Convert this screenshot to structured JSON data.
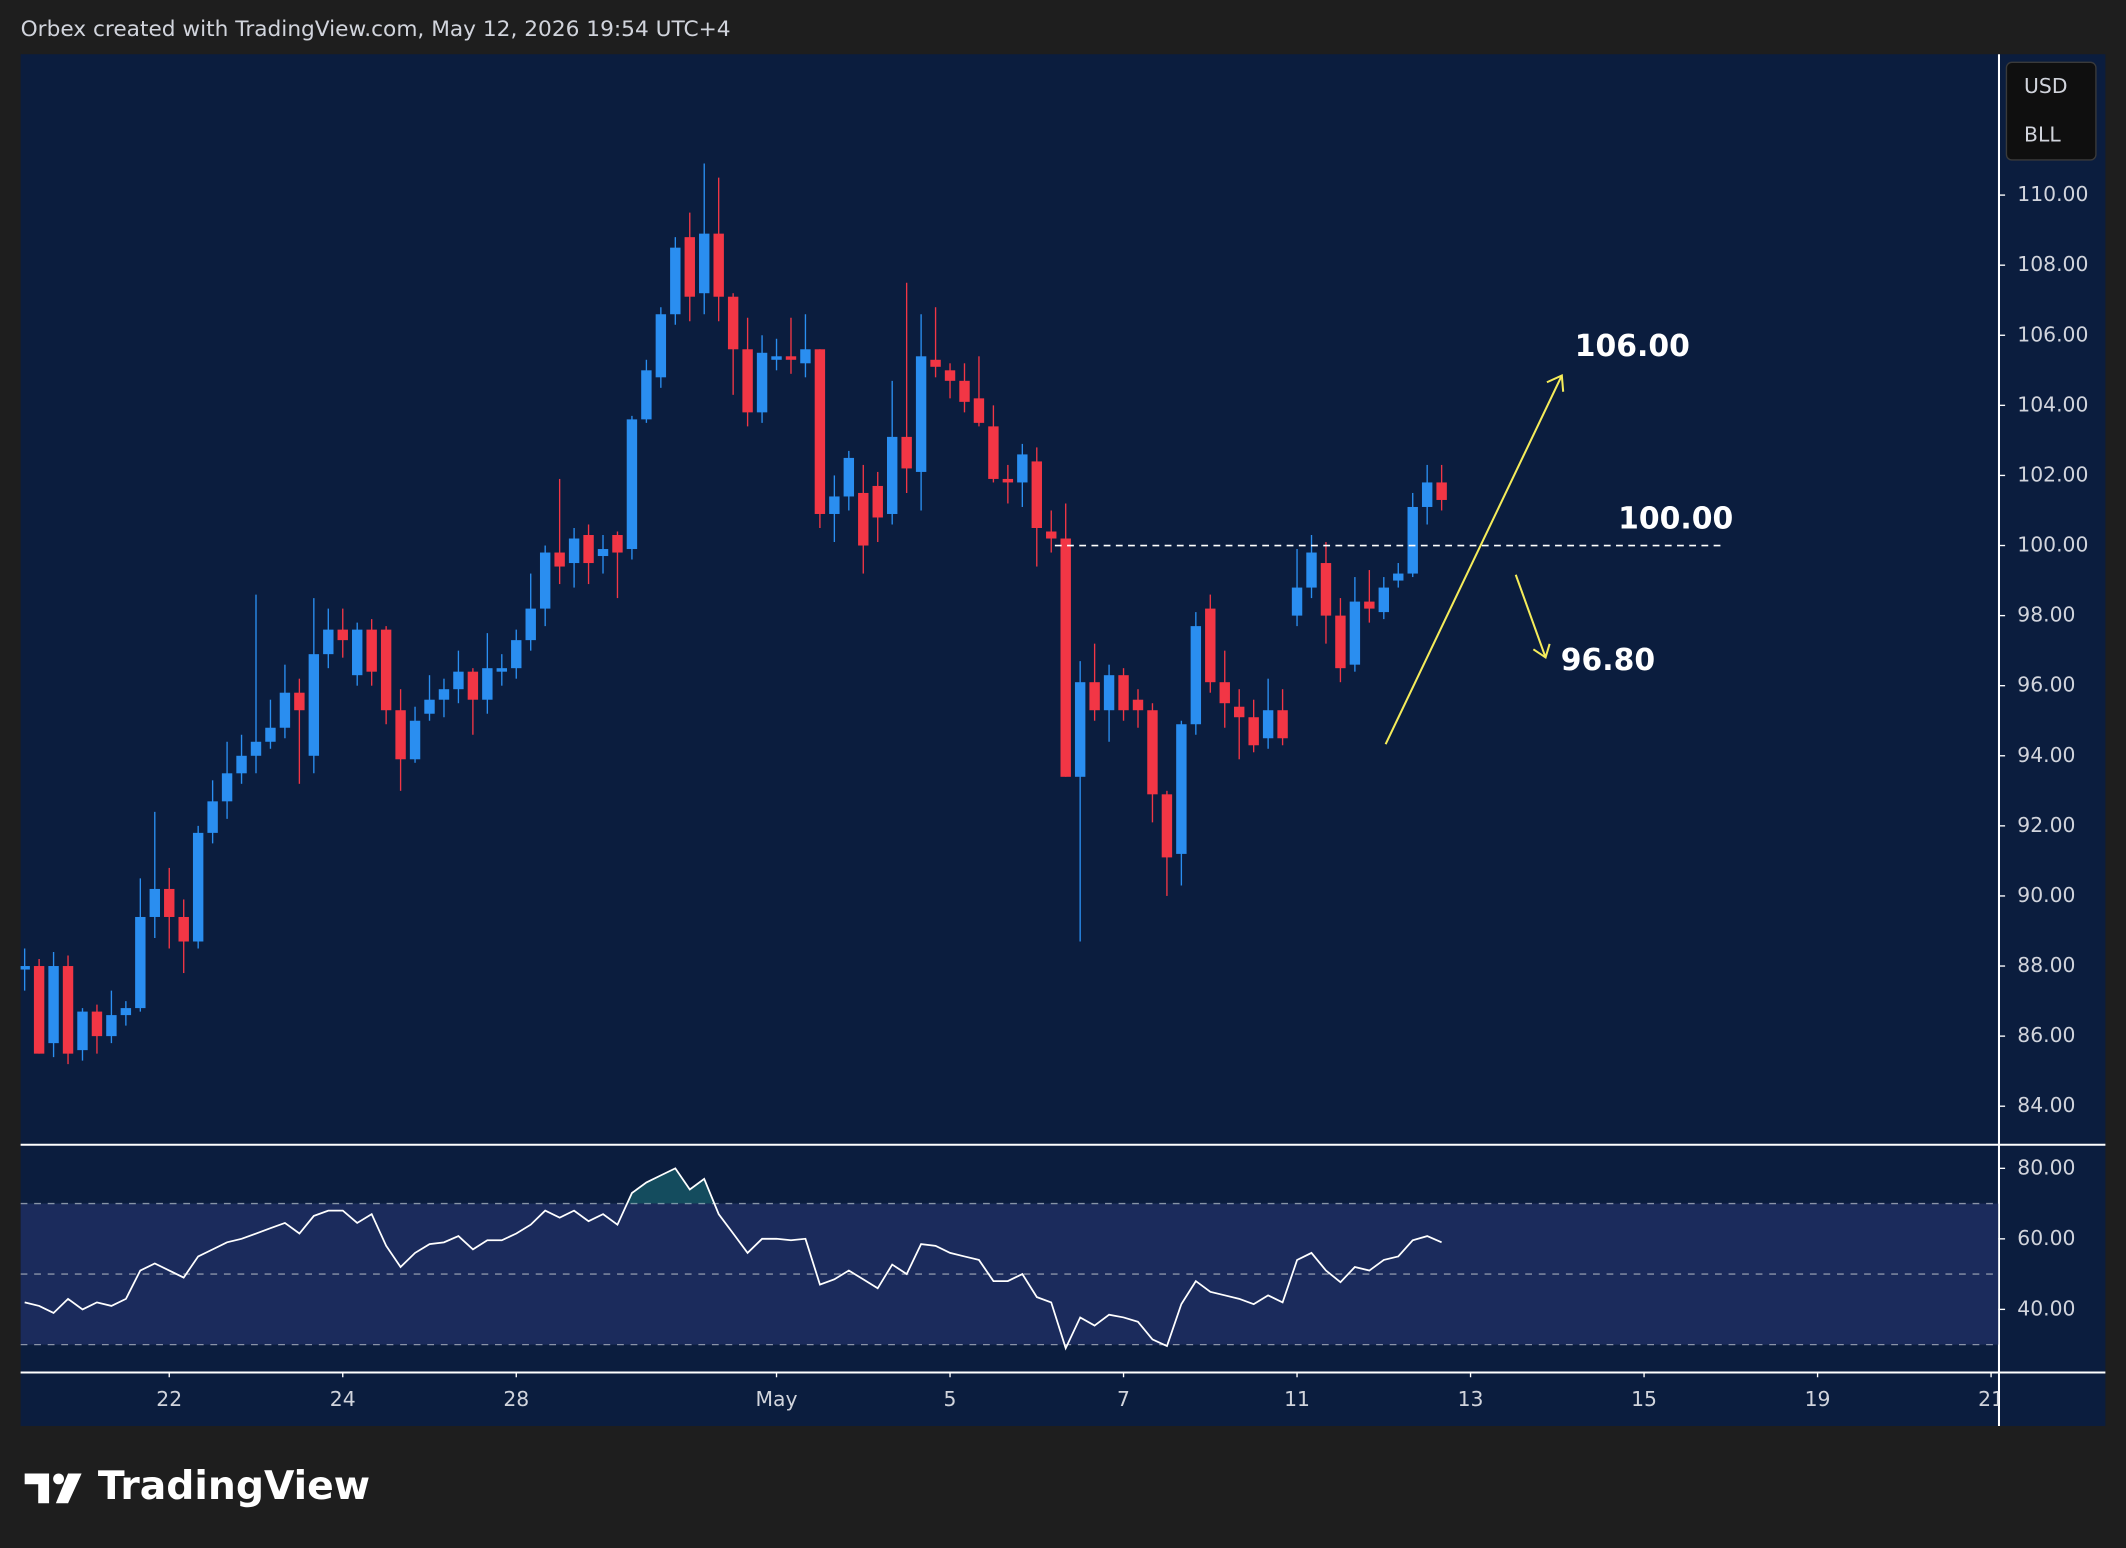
{
  "header": {
    "title": "Orbex created with TradingView.com, May 12, 2026 19:54 UTC+4"
  },
  "footer": {
    "brand": "TradingView"
  },
  "chart_data": [
    {
      "type": "candlestick",
      "units": [
        "USD",
        "BLL"
      ],
      "up_color": "#2a8ef0",
      "down_color": "#f23645",
      "open": [
        87.9,
        88.0,
        85.8,
        88.0,
        85.6,
        86.7,
        86.0,
        86.6,
        86.8,
        89.4,
        90.2,
        89.4,
        88.7,
        91.8,
        92.7,
        93.5,
        94.0,
        94.4,
        94.8,
        95.8,
        94.0,
        96.9,
        97.6,
        96.3,
        97.6,
        97.6,
        95.3,
        93.9,
        95.2,
        95.6,
        95.9,
        96.4,
        95.6,
        96.4,
        96.5,
        97.3,
        98.2,
        99.8,
        99.5,
        100.3,
        99.7,
        100.3,
        99.9,
        103.6,
        104.8,
        106.6,
        108.8,
        107.2,
        108.9,
        107.1,
        105.6,
        103.8,
        105.3,
        105.4,
        105.2,
        105.6,
        100.9,
        101.4,
        101.5,
        101.7,
        100.9,
        103.1,
        102.1,
        105.3,
        105.0,
        104.7,
        104.2,
        103.4,
        101.9,
        101.8,
        102.4,
        100.4,
        100.2,
        93.4,
        96.1,
        95.3,
        96.3,
        95.6,
        95.3,
        92.9,
        91.2,
        94.9,
        98.2,
        96.1,
        95.4,
        95.1,
        94.5,
        95.3,
        98.0,
        98.8,
        99.5,
        98.0,
        96.6,
        98.4,
        98.1,
        99.0,
        99.2,
        101.1,
        101.8
      ],
      "high": [
        88.5,
        88.2,
        88.4,
        88.3,
        86.8,
        86.9,
        87.3,
        87.0,
        90.5,
        92.4,
        90.8,
        89.9,
        92.0,
        93.3,
        94.4,
        94.6,
        98.6,
        95.6,
        96.6,
        96.2,
        98.5,
        98.2,
        98.2,
        97.8,
        97.9,
        97.7,
        95.9,
        95.4,
        96.3,
        96.2,
        97.0,
        96.5,
        97.5,
        96.9,
        97.6,
        99.2,
        100.0,
        101.9,
        100.5,
        100.6,
        100.3,
        100.4,
        103.7,
        105.3,
        106.8,
        108.8,
        109.5,
        110.9,
        110.5,
        107.2,
        106.5,
        106.0,
        105.9,
        106.5,
        106.6,
        105.6,
        102.0,
        102.7,
        102.3,
        102.1,
        104.7,
        107.5,
        106.6,
        106.8,
        105.2,
        105.2,
        105.4,
        104.0,
        102.3,
        102.9,
        102.8,
        101.0,
        101.2,
        96.7,
        97.2,
        96.6,
        96.5,
        95.9,
        95.5,
        93.0,
        95.0,
        98.1,
        98.6,
        97.0,
        95.9,
        95.6,
        96.2,
        95.9,
        99.9,
        100.3,
        100.1,
        98.5,
        99.1,
        99.3,
        99.1,
        99.5,
        101.5,
        102.3,
        102.3
      ],
      "low": [
        87.3,
        85.5,
        85.4,
        85.2,
        85.3,
        85.5,
        85.8,
        86.3,
        86.7,
        88.8,
        88.5,
        87.8,
        88.5,
        91.5,
        92.2,
        93.2,
        93.5,
        94.2,
        94.5,
        93.2,
        93.5,
        96.5,
        96.8,
        96.0,
        96.0,
        94.9,
        93.0,
        93.8,
        95.0,
        95.1,
        95.5,
        94.6,
        95.2,
        96.0,
        96.2,
        97.0,
        97.7,
        98.9,
        98.8,
        98.9,
        99.2,
        98.5,
        99.6,
        103.5,
        104.5,
        106.3,
        106.4,
        106.6,
        106.4,
        104.3,
        103.4,
        103.5,
        105.0,
        104.9,
        104.8,
        100.5,
        100.1,
        101.0,
        99.2,
        100.1,
        100.6,
        101.5,
        101.0,
        104.8,
        104.2,
        103.8,
        103.4,
        101.8,
        101.2,
        101.1,
        99.4,
        99.8,
        93.4,
        88.7,
        95.0,
        94.4,
        95.0,
        94.8,
        92.1,
        90.0,
        90.3,
        94.6,
        95.8,
        94.8,
        93.9,
        94.1,
        94.2,
        94.3,
        97.7,
        98.5,
        97.2,
        96.1,
        96.4,
        97.8,
        97.9,
        98.8,
        99.1,
        100.6,
        101.0
      ],
      "close": [
        88.0,
        85.5,
        88.0,
        85.5,
        86.7,
        86.0,
        86.6,
        86.8,
        89.4,
        90.2,
        89.4,
        88.7,
        91.8,
        92.7,
        93.5,
        94.0,
        94.4,
        94.8,
        95.8,
        95.3,
        96.9,
        97.6,
        97.3,
        97.6,
        96.4,
        95.3,
        93.9,
        95.0,
        95.6,
        95.9,
        96.4,
        95.6,
        96.5,
        96.5,
        97.3,
        98.2,
        99.8,
        99.4,
        100.2,
        99.5,
        99.9,
        99.8,
        103.6,
        105.0,
        106.6,
        108.5,
        107.1,
        108.9,
        107.1,
        105.6,
        103.8,
        105.5,
        105.4,
        105.3,
        105.6,
        100.9,
        101.4,
        102.5,
        100.0,
        100.8,
        103.1,
        102.2,
        105.4,
        105.1,
        104.7,
        104.1,
        103.5,
        101.9,
        101.8,
        102.6,
        100.5,
        100.2,
        93.4,
        96.1,
        95.3,
        96.3,
        95.3,
        95.3,
        92.9,
        91.1,
        94.9,
        97.7,
        96.1,
        95.5,
        95.1,
        94.3,
        95.3,
        94.5,
        98.8,
        99.8,
        98.0,
        96.5,
        98.4,
        98.2,
        98.8,
        99.2,
        101.1,
        101.8,
        101.3
      ],
      "ylim": [
        82.92,
        114.02
      ],
      "yticks": [
        {
          "value": 84,
          "label": "84.00"
        },
        {
          "value": 86,
          "label": "86.00"
        },
        {
          "value": 88,
          "label": "88.00"
        },
        {
          "value": 90,
          "label": "90.00"
        },
        {
          "value": 92,
          "label": "92.00"
        },
        {
          "value": 94,
          "label": "94.00"
        },
        {
          "value": 96,
          "label": "96.00"
        },
        {
          "value": 98,
          "label": "98.00"
        },
        {
          "value": 100,
          "label": "100.00"
        },
        {
          "value": 102,
          "label": "102.00"
        },
        {
          "value": 104,
          "label": "104.00"
        },
        {
          "value": 106,
          "label": "106.00"
        },
        {
          "value": 108,
          "label": "108.00"
        },
        {
          "value": 110,
          "label": "110.00"
        }
      ],
      "xlim": [
        -0.28,
        136.5
      ],
      "xticks": [
        {
          "value": 10,
          "label": "22"
        },
        {
          "value": 22,
          "label": "24"
        },
        {
          "value": 34,
          "label": "28"
        },
        {
          "value": 52,
          "label": "May"
        },
        {
          "value": 64,
          "label": "5"
        },
        {
          "value": 76,
          "label": "7"
        },
        {
          "value": 88,
          "label": "11"
        },
        {
          "value": 100,
          "label": "13"
        },
        {
          "value": 112,
          "label": "15"
        },
        {
          "value": 124,
          "label": "19"
        },
        {
          "value": 136,
          "label": "21"
        }
      ],
      "annotations": [
        {
          "value": 100,
          "label": "100.00"
        },
        {
          "value": 106,
          "label": "106.00"
        },
        {
          "value": 96.8,
          "label": "96.80"
        }
      ]
    },
    {
      "type": "line",
      "color": "#ffffff",
      "values": [
        42,
        41,
        39,
        43,
        40,
        42,
        41,
        43,
        51,
        53,
        51,
        49,
        55,
        57,
        59,
        60,
        61.5,
        63,
        64.5,
        61.5,
        66.5,
        68,
        68,
        64.5,
        67,
        58,
        52,
        56,
        58.5,
        59,
        60.8,
        57,
        59.6,
        59.6,
        61.5,
        64,
        68,
        66,
        68,
        65,
        67,
        64,
        73,
        76,
        78,
        80,
        74,
        77,
        67,
        61.5,
        56,
        60,
        60,
        59.6,
        60,
        47,
        48.5,
        51,
        48.5,
        46,
        52.7,
        50,
        58.5,
        58,
        56,
        55,
        54,
        48,
        48,
        50,
        43.5,
        42,
        29,
        37.7,
        35.4,
        38.5,
        37.7,
        36.5,
        31.5,
        29.6,
        41.5,
        48,
        45,
        44,
        43,
        41.5,
        44,
        42,
        54,
        56,
        51,
        47.7,
        52,
        51,
        54,
        55,
        59.6,
        60.8,
        59
      ],
      "ylim": [
        22.3,
        86.5
      ],
      "yticks": [
        {
          "value": 40,
          "label": "40.00"
        },
        {
          "value": 60,
          "label": "60.00"
        },
        {
          "value": 80,
          "label": "80.00"
        }
      ],
      "levels": [
        30,
        50,
        70
      ]
    }
  ]
}
